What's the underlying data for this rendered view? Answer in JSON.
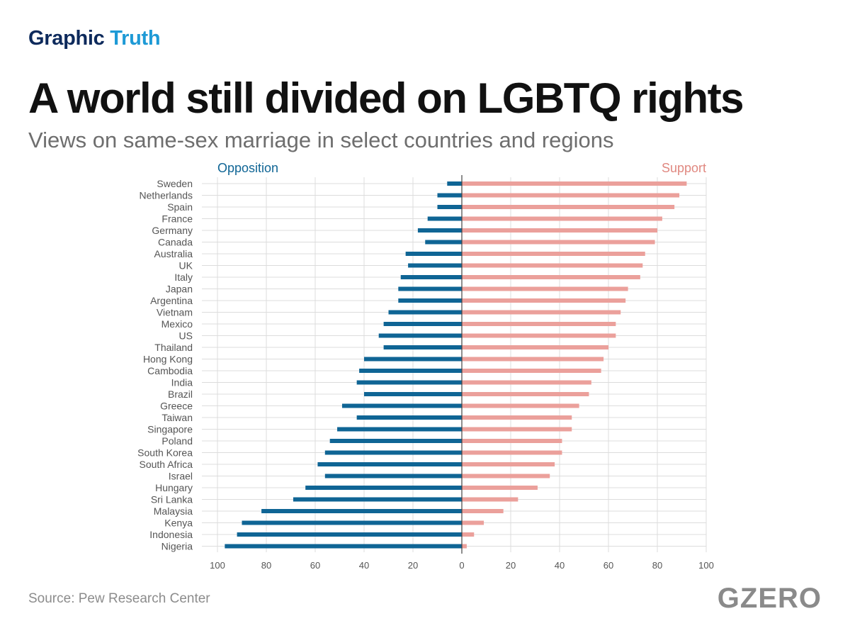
{
  "brand": {
    "part1": "Graphic",
    "part2": "Truth"
  },
  "title": "A world still divided on LGBTQ rights",
  "subtitle": "Views on same-sex marriage in select countries and regions",
  "source": "Source: Pew Research Center",
  "logo": "GZERO",
  "colors": {
    "opposition": "#0f6595",
    "support": "#eba09b",
    "grid": "#dcdcdc",
    "axis": "#444444",
    "label": "#555555"
  },
  "chart_data": {
    "type": "bar",
    "orientation": "horizontal-diverging",
    "legend": {
      "left": "Opposition",
      "right": "Support"
    },
    "xlim": [
      -100,
      100
    ],
    "xticks": [
      100,
      80,
      60,
      40,
      20,
      0,
      20,
      40,
      60,
      80,
      100
    ],
    "grid": true,
    "categories": [
      "Sweden",
      "Netherlands",
      "Spain",
      "France",
      "Germany",
      "Canada",
      "Australia",
      "UK",
      "Italy",
      "Japan",
      "Argentina",
      "Vietnam",
      "Mexico",
      "US",
      "Thailand",
      "Hong Kong",
      "Cambodia",
      "India",
      "Brazil",
      "Greece",
      "Taiwan",
      "Singapore",
      "Poland",
      "South Korea",
      "South Africa",
      "Israel",
      "Hungary",
      "Sri Lanka",
      "Malaysia",
      "Kenya",
      "Indonesia",
      "Nigeria"
    ],
    "series": [
      {
        "name": "Opposition",
        "values": [
          6,
          10,
          10,
          14,
          18,
          15,
          23,
          22,
          25,
          26,
          26,
          30,
          32,
          34,
          32,
          40,
          42,
          43,
          40,
          49,
          43,
          51,
          54,
          56,
          59,
          56,
          64,
          69,
          82,
          90,
          92,
          97
        ]
      },
      {
        "name": "Support",
        "values": [
          92,
          89,
          87,
          82,
          80,
          79,
          75,
          74,
          73,
          68,
          67,
          65,
          63,
          63,
          60,
          58,
          57,
          53,
          52,
          48,
          45,
          45,
          41,
          41,
          38,
          36,
          31,
          23,
          17,
          9,
          5,
          2
        ]
      }
    ]
  }
}
